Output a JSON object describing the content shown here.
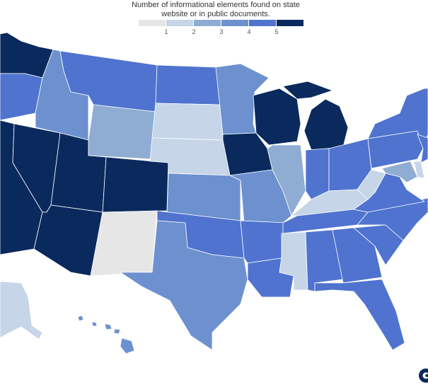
{
  "map": {
    "title_line1": "Number of informational elements found on state",
    "title_line2": "website or in public documents."
  },
  "legend": {
    "items": [
      {
        "label": "1",
        "color": "#e6e6e6"
      },
      {
        "label": "2",
        "color": "#c6d5e8"
      },
      {
        "label": "3",
        "color": "#8fadd2"
      },
      {
        "label": "4",
        "color": "#6d91cf"
      },
      {
        "label": "5",
        "color": "#4f73cf"
      },
      {
        "label": "",
        "color": "#0a2a5e"
      }
    ]
  },
  "colors": {
    "level1": "#e6e6e6",
    "level2": "#c6d5e8",
    "level3": "#8fadd2",
    "level4": "#6d91cf",
    "level5": "#4f73cf",
    "level6": "#0a2a5e"
  },
  "states": {
    "WA": 6,
    "OR": 5,
    "CA": 6,
    "NV": 6,
    "ID": 4,
    "MT": 5,
    "WY": 3,
    "UT": 6,
    "AZ": 6,
    "CO": 6,
    "NM": 1,
    "ND": 5,
    "SD": 2,
    "NE": 2,
    "KS": 4,
    "OK": 5,
    "TX": 4,
    "MN": 4,
    "IA": 6,
    "MO": 4,
    "AR": 5,
    "LA": 5,
    "WI": 6,
    "IL": 3,
    "MI": 6,
    "IN": 5,
    "OH": 5,
    "KY": 2,
    "TN": 5,
    "MS": 2,
    "AL": 5,
    "GA": 5,
    "FL": 5,
    "SC": 5,
    "NC": 5,
    "VA": 5,
    "WV": 2,
    "PA": 5,
    "NY": 5,
    "MD": 3,
    "DE": 2,
    "NJ": 5,
    "AK": 2,
    "HI": 4
  },
  "logo": {
    "icon": "brand-logo-icon"
  }
}
